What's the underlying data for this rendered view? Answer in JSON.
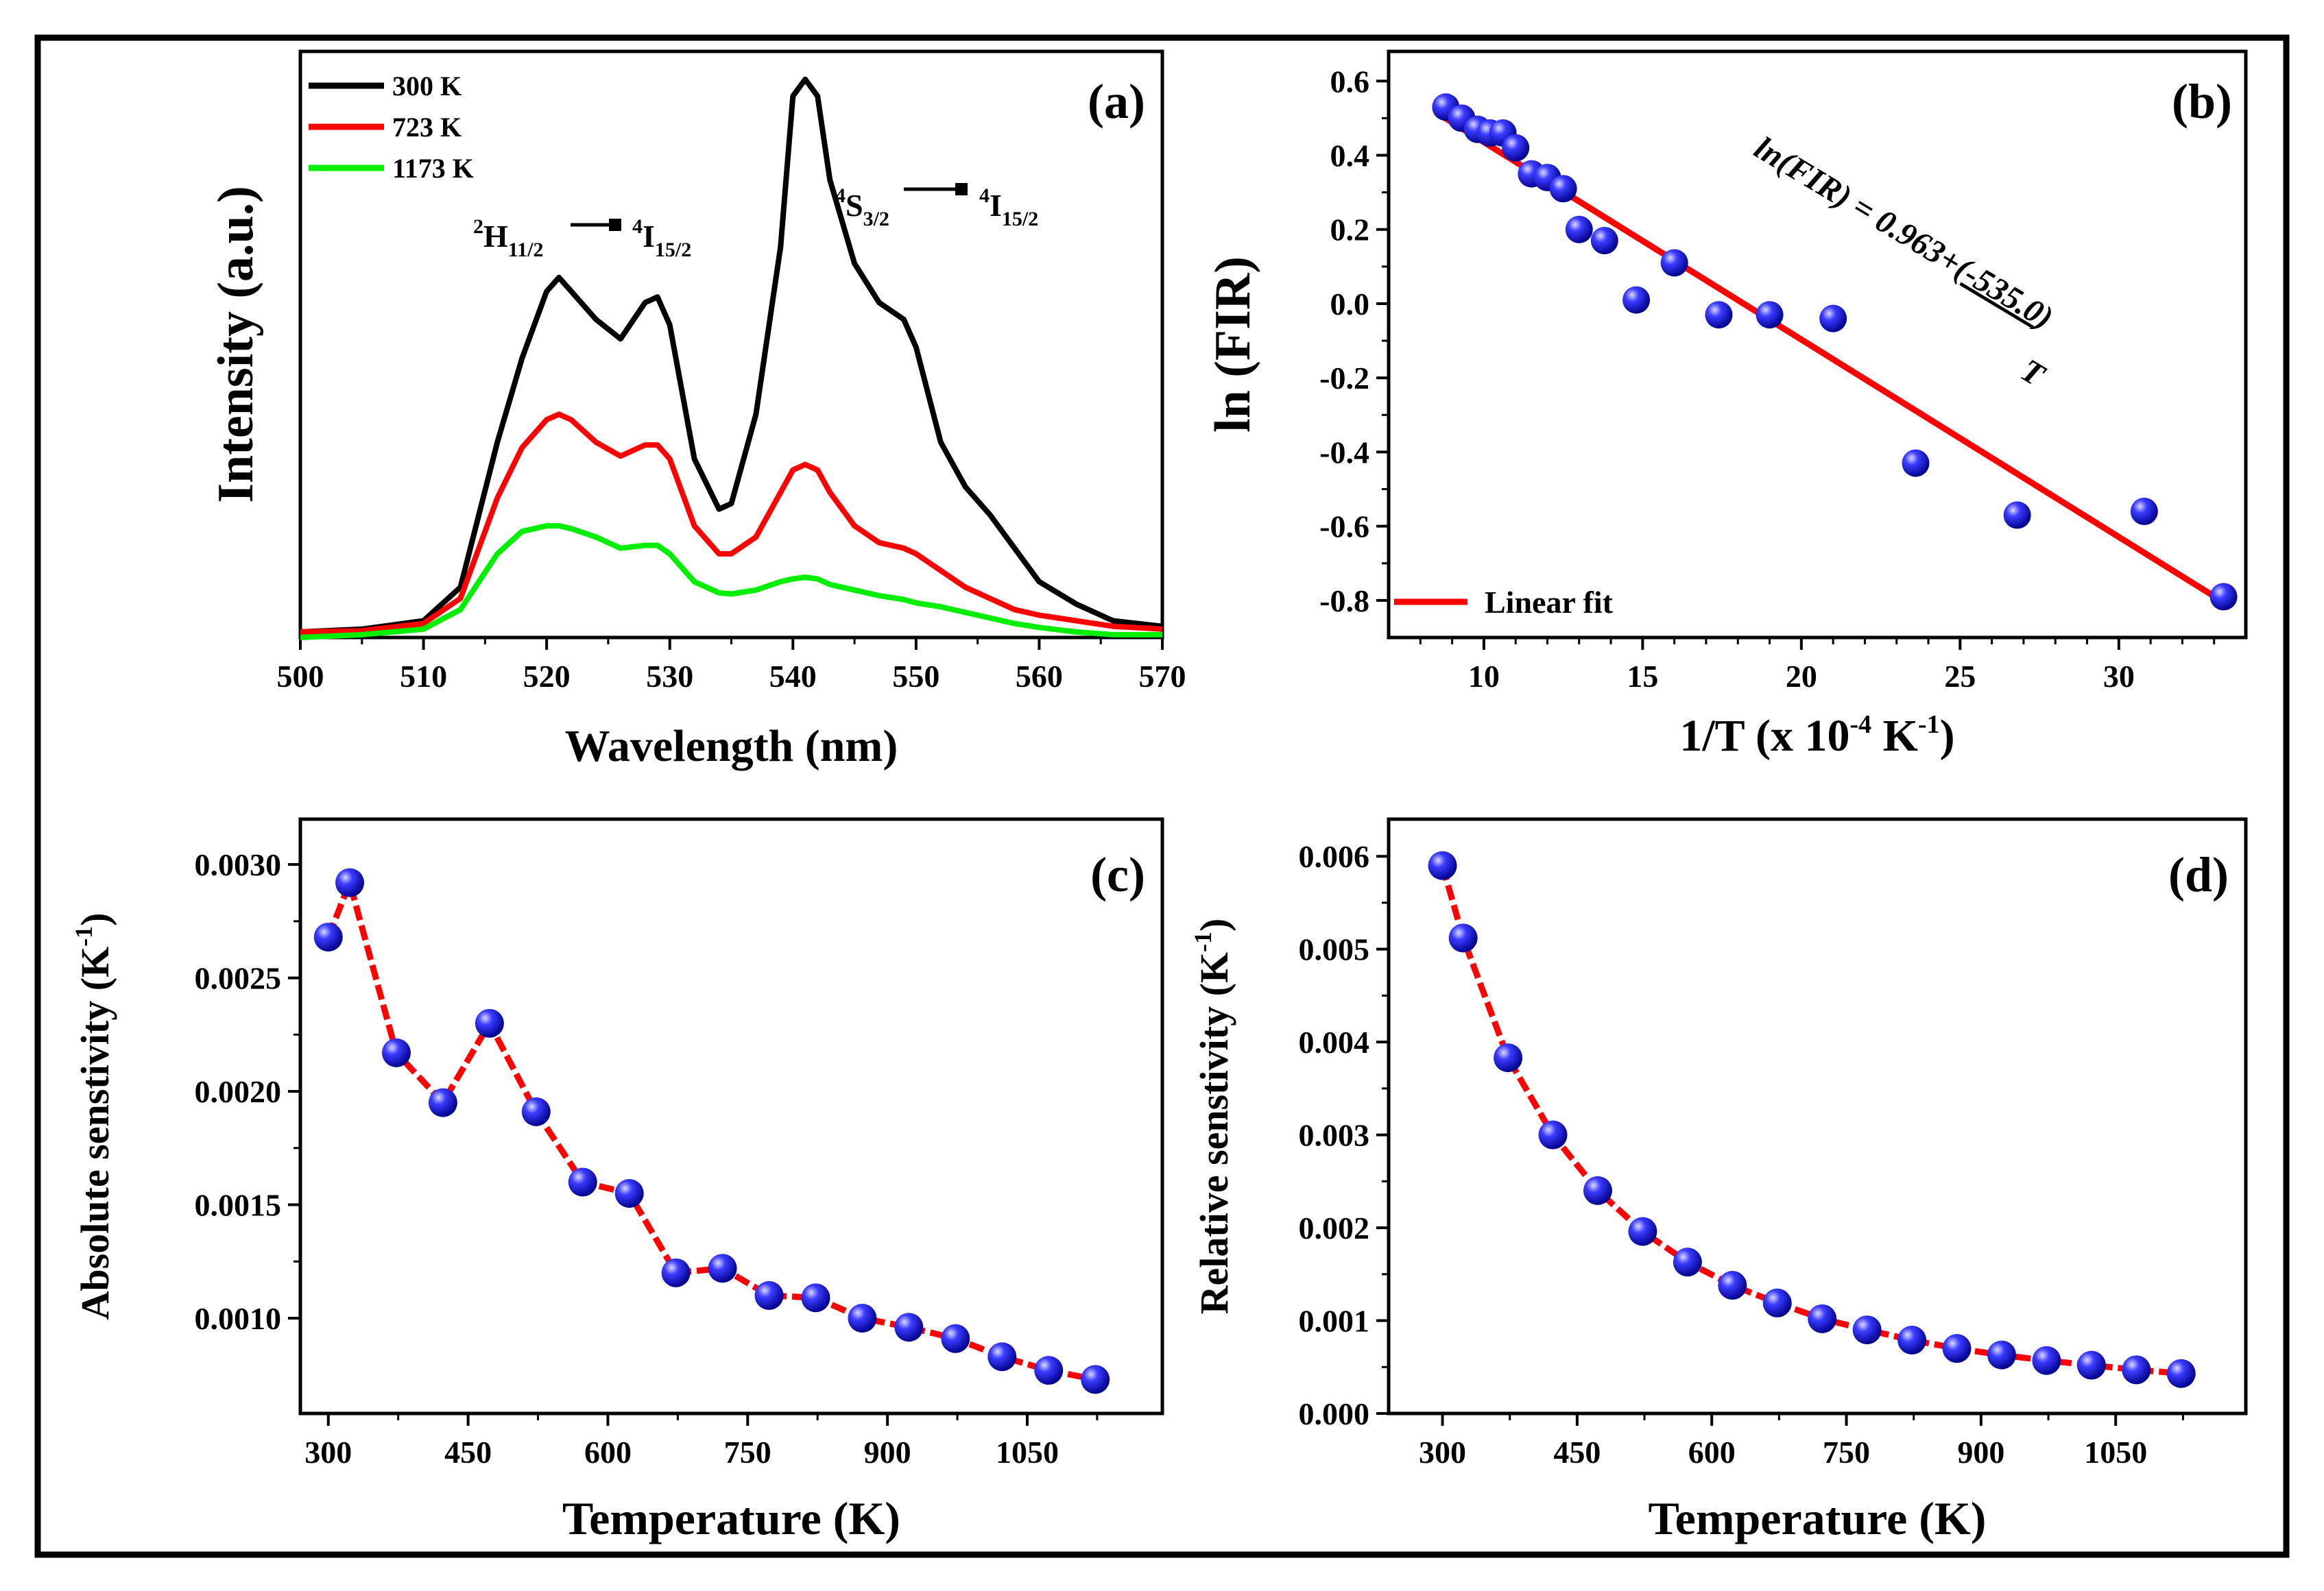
{
  "chart_data": [
    {
      "id": "a",
      "type": "line",
      "panel_label": "(a)",
      "xlabel": "Wavelength (nm)",
      "ylabel": "Intensity (a.u.)",
      "xlim": [
        500,
        570
      ],
      "ylim": [
        0,
        1.05
      ],
      "xticks": [
        "500",
        "510",
        "520",
        "530",
        "540",
        "550",
        "560",
        "570"
      ],
      "legend_position": "top-left",
      "series": [
        {
          "name": "300 K",
          "color": "#000000",
          "x": [
            500,
            505,
            510,
            513,
            516,
            518,
            520,
            521,
            522,
            524,
            526,
            528,
            529,
            530,
            532,
            534,
            535,
            537,
            539,
            540,
            541,
            542,
            543,
            545,
            547,
            549,
            550,
            552,
            554,
            556,
            558,
            560,
            563,
            566,
            570
          ],
          "values": [
            0.01,
            0.015,
            0.03,
            0.09,
            0.35,
            0.5,
            0.62,
            0.645,
            0.62,
            0.57,
            0.535,
            0.6,
            0.61,
            0.56,
            0.32,
            0.23,
            0.24,
            0.4,
            0.7,
            0.97,
            1.0,
            0.97,
            0.82,
            0.67,
            0.6,
            0.57,
            0.52,
            0.35,
            0.27,
            0.22,
            0.16,
            0.1,
            0.06,
            0.03,
            0.02
          ]
        },
        {
          "name": "723 K",
          "color": "#ff0000",
          "x": [
            500,
            505,
            510,
            513,
            516,
            518,
            520,
            521,
            522,
            524,
            526,
            528,
            529,
            530,
            532,
            534,
            535,
            537,
            539,
            540,
            541,
            542,
            543,
            545,
            547,
            549,
            550,
            552,
            554,
            556,
            558,
            560,
            563,
            566,
            570
          ],
          "values": [
            0.01,
            0.012,
            0.025,
            0.07,
            0.25,
            0.34,
            0.39,
            0.4,
            0.39,
            0.35,
            0.325,
            0.345,
            0.345,
            0.32,
            0.2,
            0.15,
            0.15,
            0.18,
            0.26,
            0.3,
            0.31,
            0.3,
            0.26,
            0.2,
            0.17,
            0.16,
            0.15,
            0.12,
            0.09,
            0.07,
            0.05,
            0.04,
            0.03,
            0.02,
            0.015
          ]
        },
        {
          "name": "1173 K",
          "color": "#00ee00",
          "x": [
            500,
            505,
            510,
            513,
            516,
            518,
            520,
            521,
            522,
            524,
            526,
            528,
            529,
            530,
            532,
            534,
            535,
            537,
            539,
            540,
            541,
            542,
            543,
            545,
            547,
            549,
            550,
            552,
            554,
            556,
            558,
            560,
            563,
            566,
            570
          ],
          "values": [
            0.0,
            0.005,
            0.015,
            0.05,
            0.15,
            0.19,
            0.2,
            0.2,
            0.195,
            0.18,
            0.16,
            0.165,
            0.165,
            0.15,
            0.1,
            0.08,
            0.078,
            0.085,
            0.1,
            0.105,
            0.108,
            0.105,
            0.095,
            0.085,
            0.075,
            0.068,
            0.062,
            0.055,
            0.045,
            0.035,
            0.025,
            0.018,
            0.01,
            0.005,
            0.005
          ]
        }
      ],
      "annotations": [
        {
          "main": "H",
          "sup": "2",
          "sub": "11/2",
          "arrow_to": true
        },
        {
          "main": "I",
          "sup": "4",
          "sub": "15/2"
        },
        {
          "main": "S",
          "sup": "4",
          "sub": "3/2",
          "arrow_to": true
        },
        {
          "main": "I",
          "sup": "4",
          "sub": "15/2"
        }
      ]
    },
    {
      "id": "b",
      "type": "scatter",
      "panel_label": "(b)",
      "xlabel": "1/T (x 10",
      "xlabel_exp": "-4",
      "xlabel_unit": " K",
      "xlabel_unit_exp": "-1",
      "xlabel_close": ")",
      "ylabel": "ln (FIR)",
      "xlim": [
        7,
        34
      ],
      "ylim": [
        -0.9,
        0.68
      ],
      "xticks": [
        10,
        15,
        20,
        25,
        30
      ],
      "yticks": [
        0.6,
        0.4,
        0.2,
        0.0,
        -0.2,
        -0.4,
        -0.6,
        -0.8
      ],
      "ytick_labels": [
        "0.6",
        "0.4",
        "0.2",
        "0.0",
        "-0.2",
        "-0.4",
        "-0.6",
        "-0.8"
      ],
      "x": [
        8.8,
        9.3,
        9.8,
        10.2,
        10.6,
        11.0,
        11.5,
        12.0,
        12.5,
        13.0,
        13.8,
        14.8,
        16.0,
        17.4,
        19.0,
        21.0,
        23.6,
        26.8,
        30.8,
        33.3
      ],
      "values": [
        0.53,
        0.5,
        0.47,
        0.46,
        0.46,
        0.42,
        0.35,
        0.34,
        0.31,
        0.2,
        0.17,
        0.01,
        0.11,
        -0.03,
        -0.03,
        -0.04,
        -0.43,
        -0.57,
        -0.56,
        -0.79
      ],
      "fit": {
        "name": "Linear fit",
        "color": "#ff0000",
        "x": [
          8.6,
          33.4
        ],
        "values": [
          0.51,
          -0.81
        ]
      },
      "equation": {
        "prefix": "ln(FIR) = 0.963+(",
        "numerator": "-535.0",
        "suffix": ")",
        "denominator": "T"
      },
      "legend_position": "bottom-left"
    },
    {
      "id": "c",
      "type": "line",
      "panel_label": "(c)",
      "xlabel": "Temperature (K)",
      "ylabel": "Absolute senstivity (K",
      "ylabel_exp": "-1",
      "ylabel_close": ")",
      "xlim": [
        270,
        1195
      ],
      "ylim": [
        0.00058,
        0.0032
      ],
      "xticks": [
        300,
        450,
        600,
        750,
        900,
        1050
      ],
      "xtick_labels": [
        "300",
        "450",
        "600",
        "750",
        "900",
        "1050"
      ],
      "yticks": [
        0.001,
        0.0015,
        0.002,
        0.0025,
        0.003
      ],
      "ytick_labels": [
        "0.0010",
        "0.0015",
        "0.0020",
        "0.0025",
        "0.0030"
      ],
      "x": [
        300,
        323,
        373,
        423,
        473,
        523,
        573,
        623,
        673,
        723,
        773,
        823,
        873,
        923,
        973,
        1023,
        1073,
        1123
      ],
      "values": [
        0.00268,
        0.00292,
        0.00217,
        0.00195,
        0.0023,
        0.00191,
        0.0016,
        0.00155,
        0.0012,
        0.00122,
        0.0011,
        0.00109,
        0.001,
        0.00096,
        0.00091,
        0.00083,
        0.00077,
        0.00073
      ]
    },
    {
      "id": "d",
      "type": "line",
      "panel_label": "(d)",
      "xlabel": "Temperature (K)",
      "ylabel": "Relative senstivity (K",
      "ylabel_exp": "-1",
      "ylabel_close": ")",
      "xlim": [
        240,
        1195
      ],
      "ylim": [
        0.0,
        0.0064
      ],
      "xticks": [
        300,
        450,
        600,
        750,
        900,
        1050
      ],
      "xtick_labels": [
        "300",
        "450",
        "600",
        "750",
        "900",
        "1050"
      ],
      "yticks": [
        0.0,
        0.001,
        0.002,
        0.003,
        0.004,
        0.005,
        0.006
      ],
      "ytick_labels": [
        "0.000",
        "0.001",
        "0.002",
        "0.003",
        "0.004",
        "0.005",
        "0.006"
      ],
      "x": [
        300,
        323,
        373,
        423,
        473,
        523,
        573,
        623,
        673,
        723,
        773,
        823,
        873,
        923,
        973,
        1023,
        1073,
        1123
      ],
      "values": [
        0.0059,
        0.00512,
        0.00383,
        0.003,
        0.0024,
        0.00196,
        0.00163,
        0.00138,
        0.00119,
        0.00102,
        0.0009,
        0.00079,
        0.0007,
        0.00063,
        0.00057,
        0.00052,
        0.00047,
        0.00043
      ]
    }
  ]
}
